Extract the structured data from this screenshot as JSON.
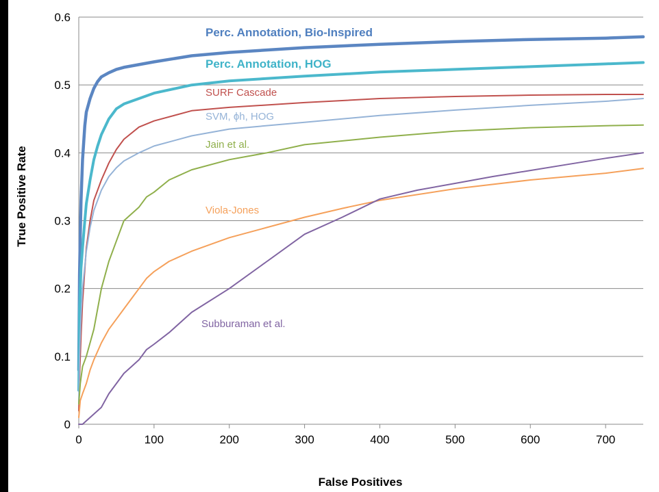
{
  "chart_data": {
    "type": "line",
    "title": "",
    "xlabel": "False Positives",
    "ylabel": "True Positive Rate",
    "xlim": [
      0,
      750
    ],
    "ylim": [
      0,
      0.6
    ],
    "x_ticks": [
      "0",
      "100",
      "200",
      "300",
      "400",
      "500",
      "600",
      "700"
    ],
    "y_ticks": [
      "0",
      "0.1",
      "0.2",
      "0.3",
      "0.4",
      "0.5",
      "0.6"
    ],
    "grid": true,
    "legend": "inline labels",
    "series": [
      {
        "name": "Perc. Annotation, Bio-Inspired",
        "color": "#5b86c2",
        "x": [
          0,
          1,
          2,
          3,
          5,
          8,
          10,
          15,
          20,
          25,
          30,
          40,
          50,
          60,
          80,
          100,
          150,
          200,
          300,
          400,
          500,
          600,
          700,
          750
        ],
        "y": [
          0.08,
          0.22,
          0.28,
          0.33,
          0.39,
          0.44,
          0.46,
          0.48,
          0.495,
          0.505,
          0.512,
          0.518,
          0.523,
          0.526,
          0.53,
          0.534,
          0.543,
          0.548,
          0.555,
          0.56,
          0.564,
          0.567,
          0.569,
          0.571
        ]
      },
      {
        "name": "Perc. Annotation, HOG",
        "color": "#4bb8cc",
        "x": [
          0,
          1,
          3,
          5,
          8,
          10,
          15,
          20,
          25,
          30,
          40,
          50,
          60,
          80,
          100,
          150,
          200,
          300,
          400,
          500,
          600,
          700,
          750
        ],
        "y": [
          0.05,
          0.17,
          0.23,
          0.26,
          0.3,
          0.325,
          0.36,
          0.39,
          0.41,
          0.427,
          0.45,
          0.465,
          0.472,
          0.48,
          0.488,
          0.5,
          0.506,
          0.513,
          0.519,
          0.523,
          0.527,
          0.531,
          0.533
        ]
      },
      {
        "name": "SURF Cascade",
        "color": "#c0504d",
        "x": [
          0,
          1,
          3,
          5,
          10,
          15,
          20,
          30,
          40,
          50,
          60,
          80,
          100,
          150,
          200,
          300,
          400,
          500,
          600,
          700,
          750
        ],
        "y": [
          0.02,
          0.07,
          0.13,
          0.18,
          0.26,
          0.3,
          0.33,
          0.36,
          0.385,
          0.405,
          0.42,
          0.438,
          0.447,
          0.462,
          0.467,
          0.474,
          0.48,
          0.483,
          0.485,
          0.486,
          0.486
        ]
      },
      {
        "name": "SVM, ϕh, HOG",
        "color": "#95b3d7",
        "x": [
          0,
          1,
          3,
          5,
          10,
          15,
          20,
          30,
          40,
          50,
          60,
          80,
          100,
          150,
          200,
          300,
          400,
          500,
          600,
          700,
          750
        ],
        "y": [
          0.03,
          0.1,
          0.16,
          0.2,
          0.255,
          0.29,
          0.315,
          0.345,
          0.365,
          0.378,
          0.388,
          0.4,
          0.41,
          0.425,
          0.435,
          0.445,
          0.455,
          0.463,
          0.47,
          0.476,
          0.48
        ]
      },
      {
        "name": "Jain et al.",
        "color": "#8faf4b",
        "x": [
          0,
          2,
          5,
          10,
          15,
          20,
          25,
          30,
          40,
          50,
          60,
          70,
          80,
          90,
          100,
          120,
          150,
          200,
          250,
          300,
          400,
          500,
          600,
          700,
          750
        ],
        "y": [
          0.03,
          0.06,
          0.085,
          0.1,
          0.12,
          0.14,
          0.17,
          0.2,
          0.24,
          0.27,
          0.3,
          0.31,
          0.32,
          0.335,
          0.342,
          0.36,
          0.375,
          0.39,
          0.4,
          0.412,
          0.423,
          0.432,
          0.437,
          0.44,
          0.441
        ]
      },
      {
        "name": "Viola-Jones",
        "color": "#f5a05a",
        "x": [
          0,
          2,
          5,
          10,
          15,
          20,
          30,
          40,
          50,
          60,
          70,
          80,
          90,
          100,
          120,
          150,
          200,
          250,
          300,
          350,
          400,
          500,
          600,
          700,
          750
        ],
        "y": [
          0.01,
          0.035,
          0.045,
          0.06,
          0.08,
          0.095,
          0.12,
          0.14,
          0.155,
          0.17,
          0.185,
          0.2,
          0.215,
          0.225,
          0.24,
          0.255,
          0.275,
          0.29,
          0.305,
          0.318,
          0.33,
          0.347,
          0.36,
          0.37,
          0.377
        ]
      },
      {
        "name": "Subburaman et al.",
        "color": "#8064a2",
        "x": [
          0,
          5,
          10,
          20,
          30,
          40,
          50,
          60,
          70,
          80,
          90,
          100,
          120,
          150,
          200,
          250,
          300,
          350,
          400,
          450,
          500,
          550,
          600,
          650,
          700,
          750
        ],
        "y": [
          0.0,
          0.0,
          0.005,
          0.015,
          0.025,
          0.045,
          0.06,
          0.075,
          0.085,
          0.095,
          0.11,
          0.118,
          0.135,
          0.165,
          0.2,
          0.24,
          0.28,
          0.305,
          0.332,
          0.345,
          0.355,
          0.365,
          0.374,
          0.383,
          0.392,
          0.4
        ]
      }
    ]
  }
}
